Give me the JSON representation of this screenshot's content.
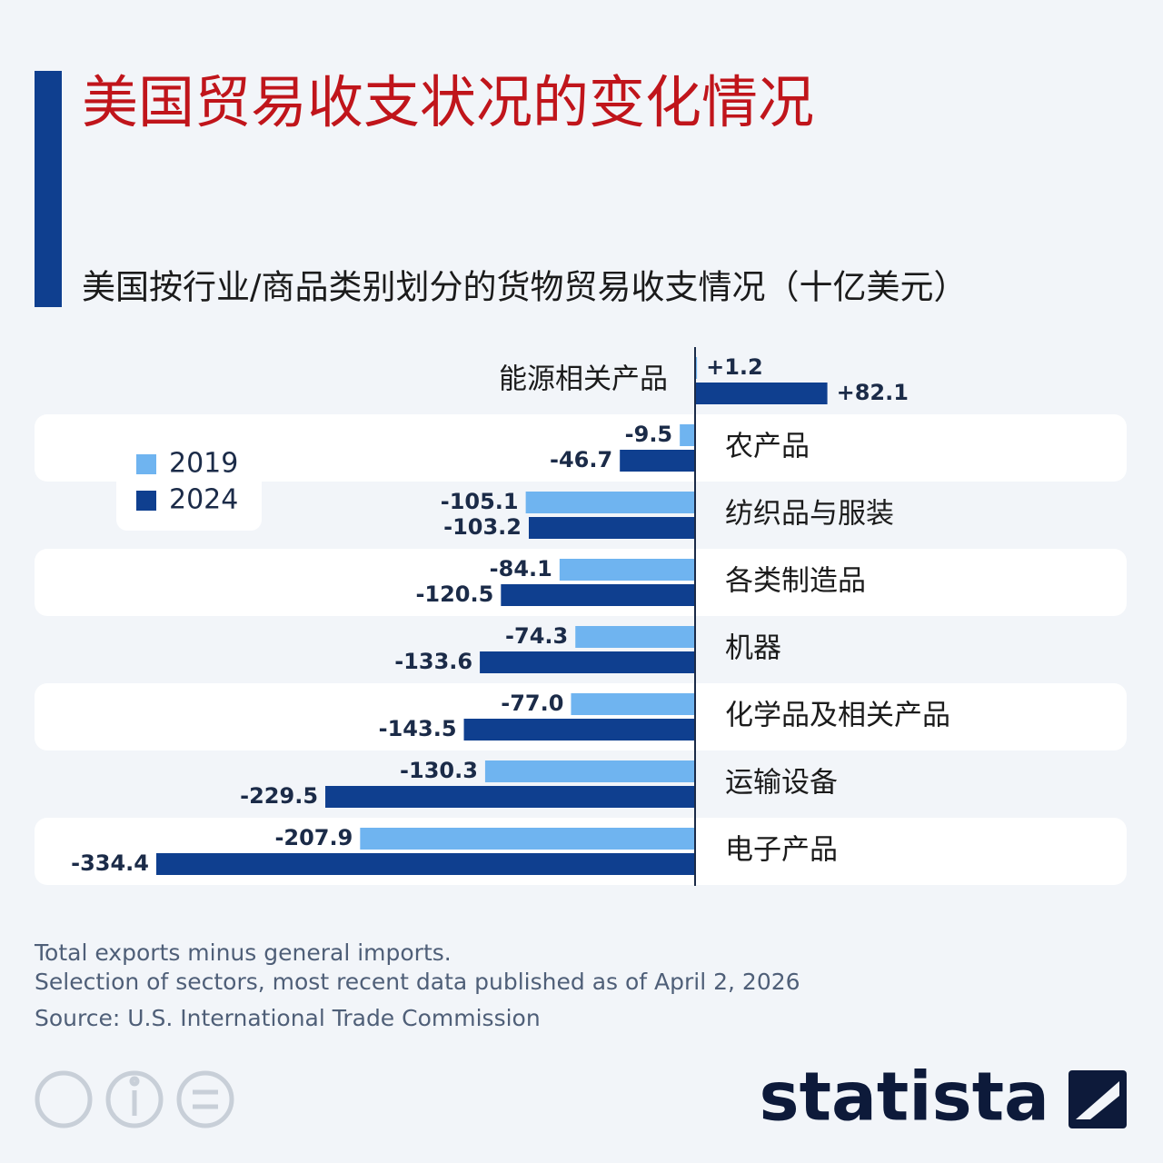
{
  "chart_data": {
    "type": "bar",
    "orientation": "horizontal",
    "title": "美国贸易收支状况的变化情况",
    "subtitle": "美国按行业/商品类别划分的货物贸易收支情况（十亿美元）",
    "categories": [
      "能源相关产品",
      "农产品",
      "纺织品与服装",
      "各类制造品",
      "机器",
      "化学品及相关产品",
      "运输设备",
      "电子产品"
    ],
    "series": [
      {
        "name": "2019",
        "color": "#6fb4f0",
        "values": [
          1.2,
          -9.5,
          -105.1,
          -84.1,
          -74.3,
          -77.0,
          -130.3,
          -207.9
        ],
        "value_labels": [
          "+1.2",
          "-9.5",
          "-105.1",
          "-84.1",
          "-74.3",
          "-77.0",
          "-130.3",
          "-207.9"
        ]
      },
      {
        "name": "2024",
        "color": "#0f3f8f",
        "values": [
          82.1,
          -46.7,
          -103.2,
          -120.5,
          -133.6,
          -143.5,
          -229.5,
          -334.4
        ],
        "value_labels": [
          "+82.1",
          "-46.7",
          "-103.2",
          "-120.5",
          "-133.6",
          "-143.5",
          "-229.5",
          "-334.4"
        ]
      }
    ],
    "notes": [
      "Total exports minus general imports.",
      "Selection of sectors, most recent data published as of April 2, 2026"
    ],
    "source": "Source: U.S. International Trade Commission",
    "brand": "statista"
  }
}
